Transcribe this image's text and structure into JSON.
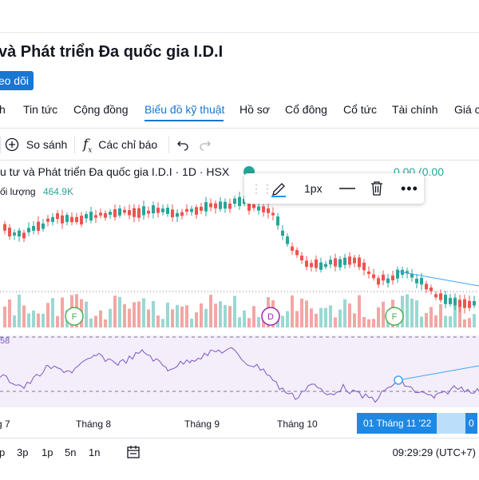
{
  "header": {
    "title": "và Phát triển Đa quốc gia I.D.I",
    "follow_label": "eo dõi"
  },
  "tabs": [
    {
      "label": "h"
    },
    {
      "label": "Tin tức"
    },
    {
      "label": "Cộng đồng"
    },
    {
      "label": "Biểu đồ kỹ thuật",
      "active": true
    },
    {
      "label": "Hồ sơ"
    },
    {
      "label": "Cổ đông"
    },
    {
      "label": "Cổ tức"
    },
    {
      "label": "Tài chính"
    },
    {
      "label": "Giá c"
    }
  ],
  "toolbar": {
    "compare_label": "So sánh",
    "indicators_label": "Các chỉ báo",
    "compare_icon": "plus-circle-icon",
    "indicators_icon": "function-icon",
    "undo_icon": "undo-icon",
    "redo_icon": "redo-icon"
  },
  "legend": {
    "symbol_text": "u tư và Phát triển Đa quốc gia I.D.I · 1D · HSX",
    "ohlc_text": "0.00 (0.00",
    "volume_label": "ối lượng",
    "volume_value": "464.9K"
  },
  "drawing_toolbar": {
    "pencil_icon": "pencil-icon",
    "width_label": "1px",
    "line_style_icon": "line-style-icon",
    "delete_icon": "trash-icon",
    "more_icon": "more-icon"
  },
  "rsi_label": "58",
  "x_axis": {
    "labels": [
      "g 7",
      "Tháng 8",
      "Tháng 9",
      "Tháng 10"
    ],
    "highlight_start": "01 Tháng 11 '22",
    "highlight_end": "0"
  },
  "bottom_bar": {
    "ranges": [
      "p",
      "3p",
      "1p",
      "5n",
      "1n"
    ],
    "calendar_icon": "calendar-range-icon",
    "clock": "09:29:29 (UTC+7)"
  },
  "colors": {
    "up": "#26a69a",
    "down": "#ef5350",
    "accent": "#1976d2",
    "rsi": "#7e57c2",
    "trendline": "#42a5f5"
  }
}
